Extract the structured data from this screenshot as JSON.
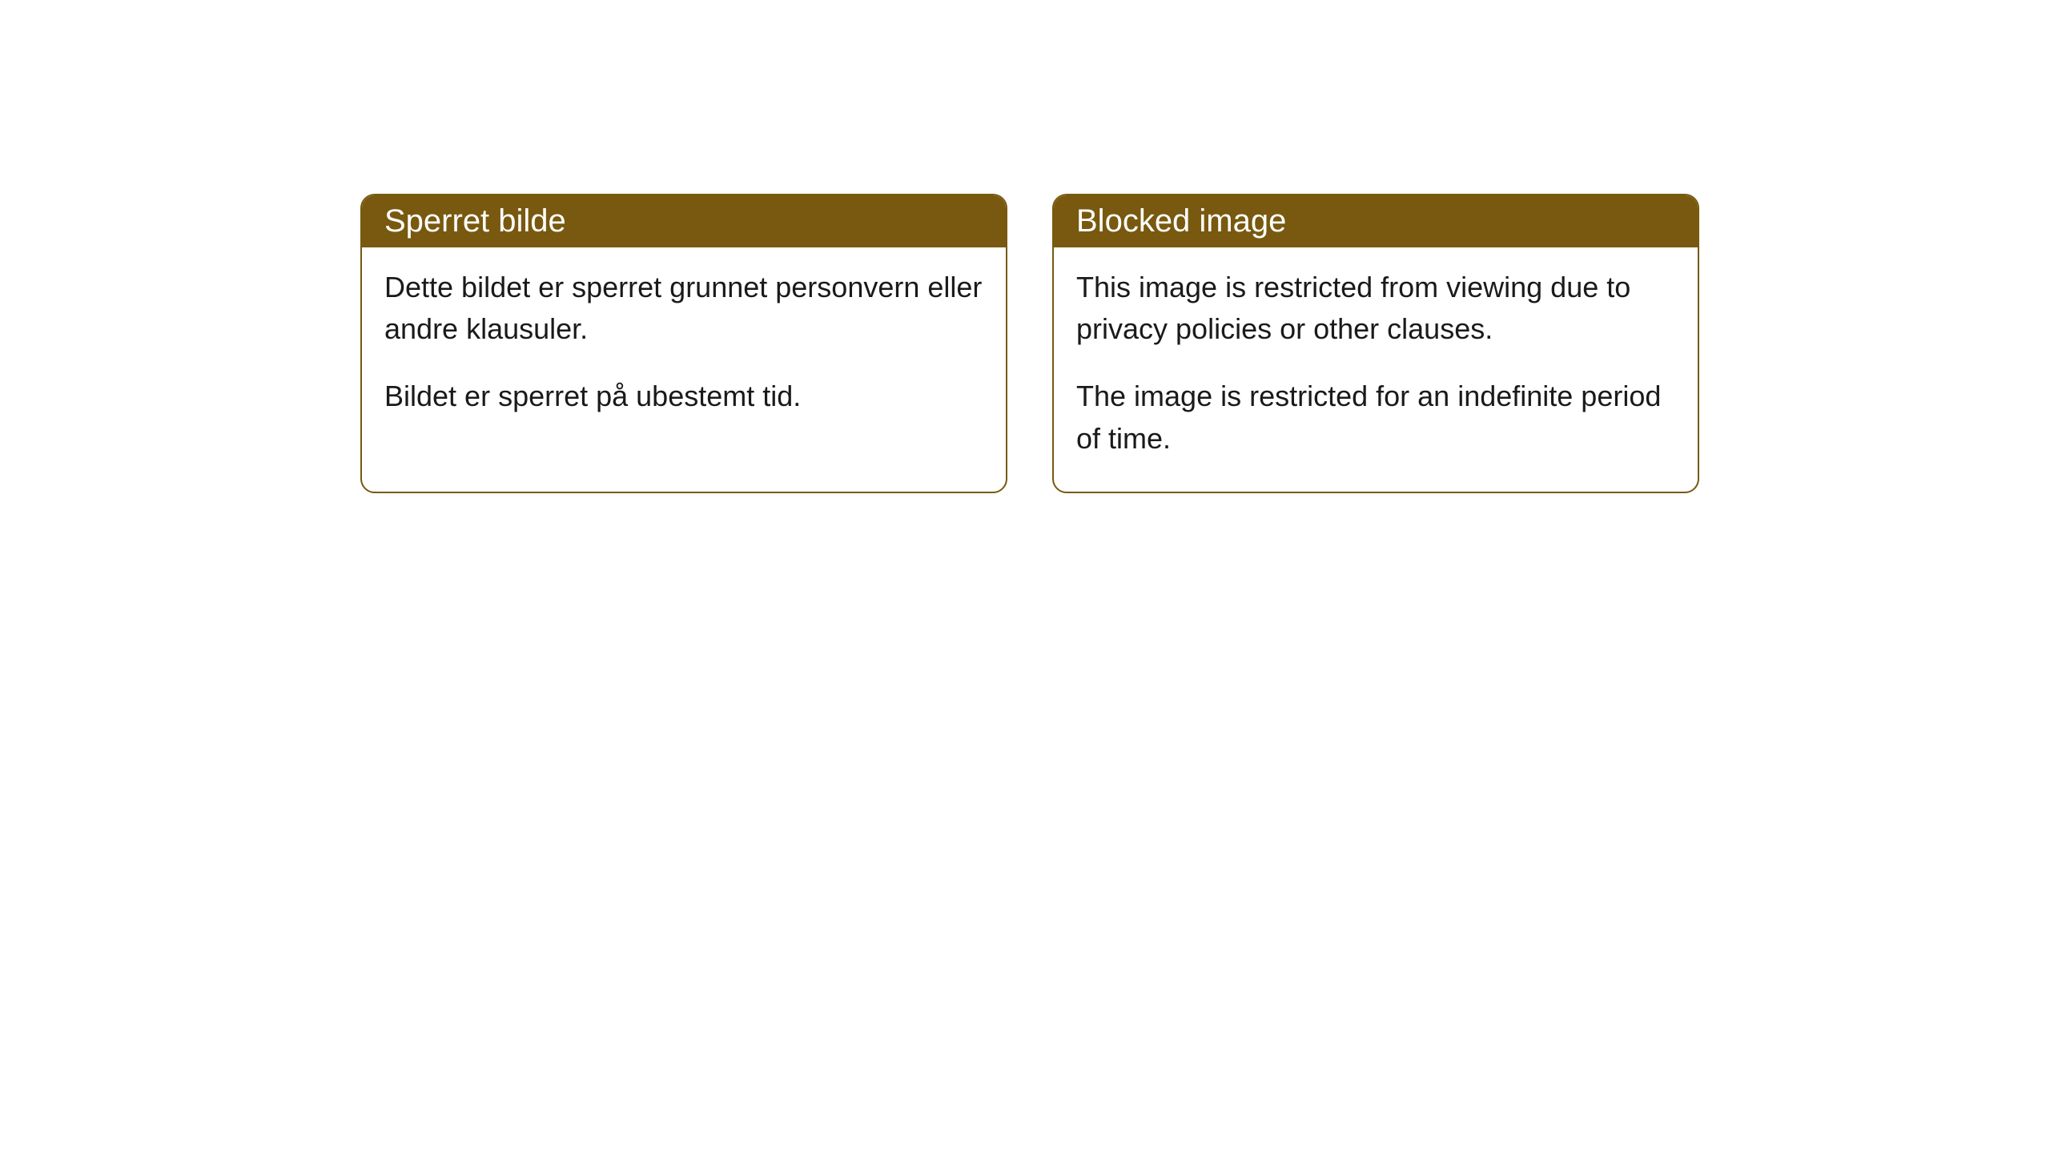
{
  "cards": [
    {
      "title": "Sperret bilde",
      "paragraph1": "Dette bildet er sperret grunnet personvern eller andre klausuler.",
      "paragraph2": "Bildet er sperret på ubestemt tid."
    },
    {
      "title": "Blocked image",
      "paragraph1": "This image is restricted from viewing due to privacy policies or other clauses.",
      "paragraph2": "The image is restricted for an indefinite period of time."
    }
  ],
  "style": {
    "header_background": "#78590f",
    "header_text_color": "#ffffff",
    "border_color": "#78590f",
    "body_text_color": "#1a1a1a",
    "page_background": "#ffffff",
    "border_radius": 18,
    "header_fontsize": 40,
    "body_fontsize": 36
  }
}
